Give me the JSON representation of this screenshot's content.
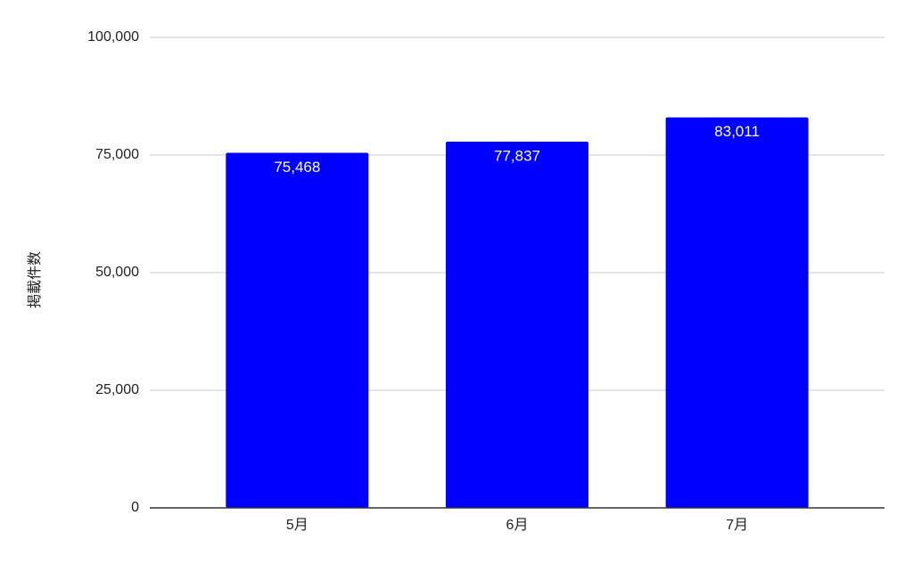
{
  "chart_data": {
    "type": "bar",
    "y_label": "掲載件数",
    "categories": [
      "5月",
      "6月",
      "7月"
    ],
    "values": [
      75468,
      77837,
      83011
    ],
    "value_labels": [
      "75,468",
      "77,837",
      "83,011"
    ],
    "color": "#0000ff",
    "ylim": [
      0,
      100000
    ],
    "yticks": [
      0,
      {
        "value": 25000,
        "label": "25,000"
      },
      {
        "value": 50000,
        "label": "50,000"
      },
      {
        "value": 75000,
        "label": "75,000"
      },
      {
        "value": 100000,
        "label": "100,000"
      }
    ],
    "grid": true
  }
}
